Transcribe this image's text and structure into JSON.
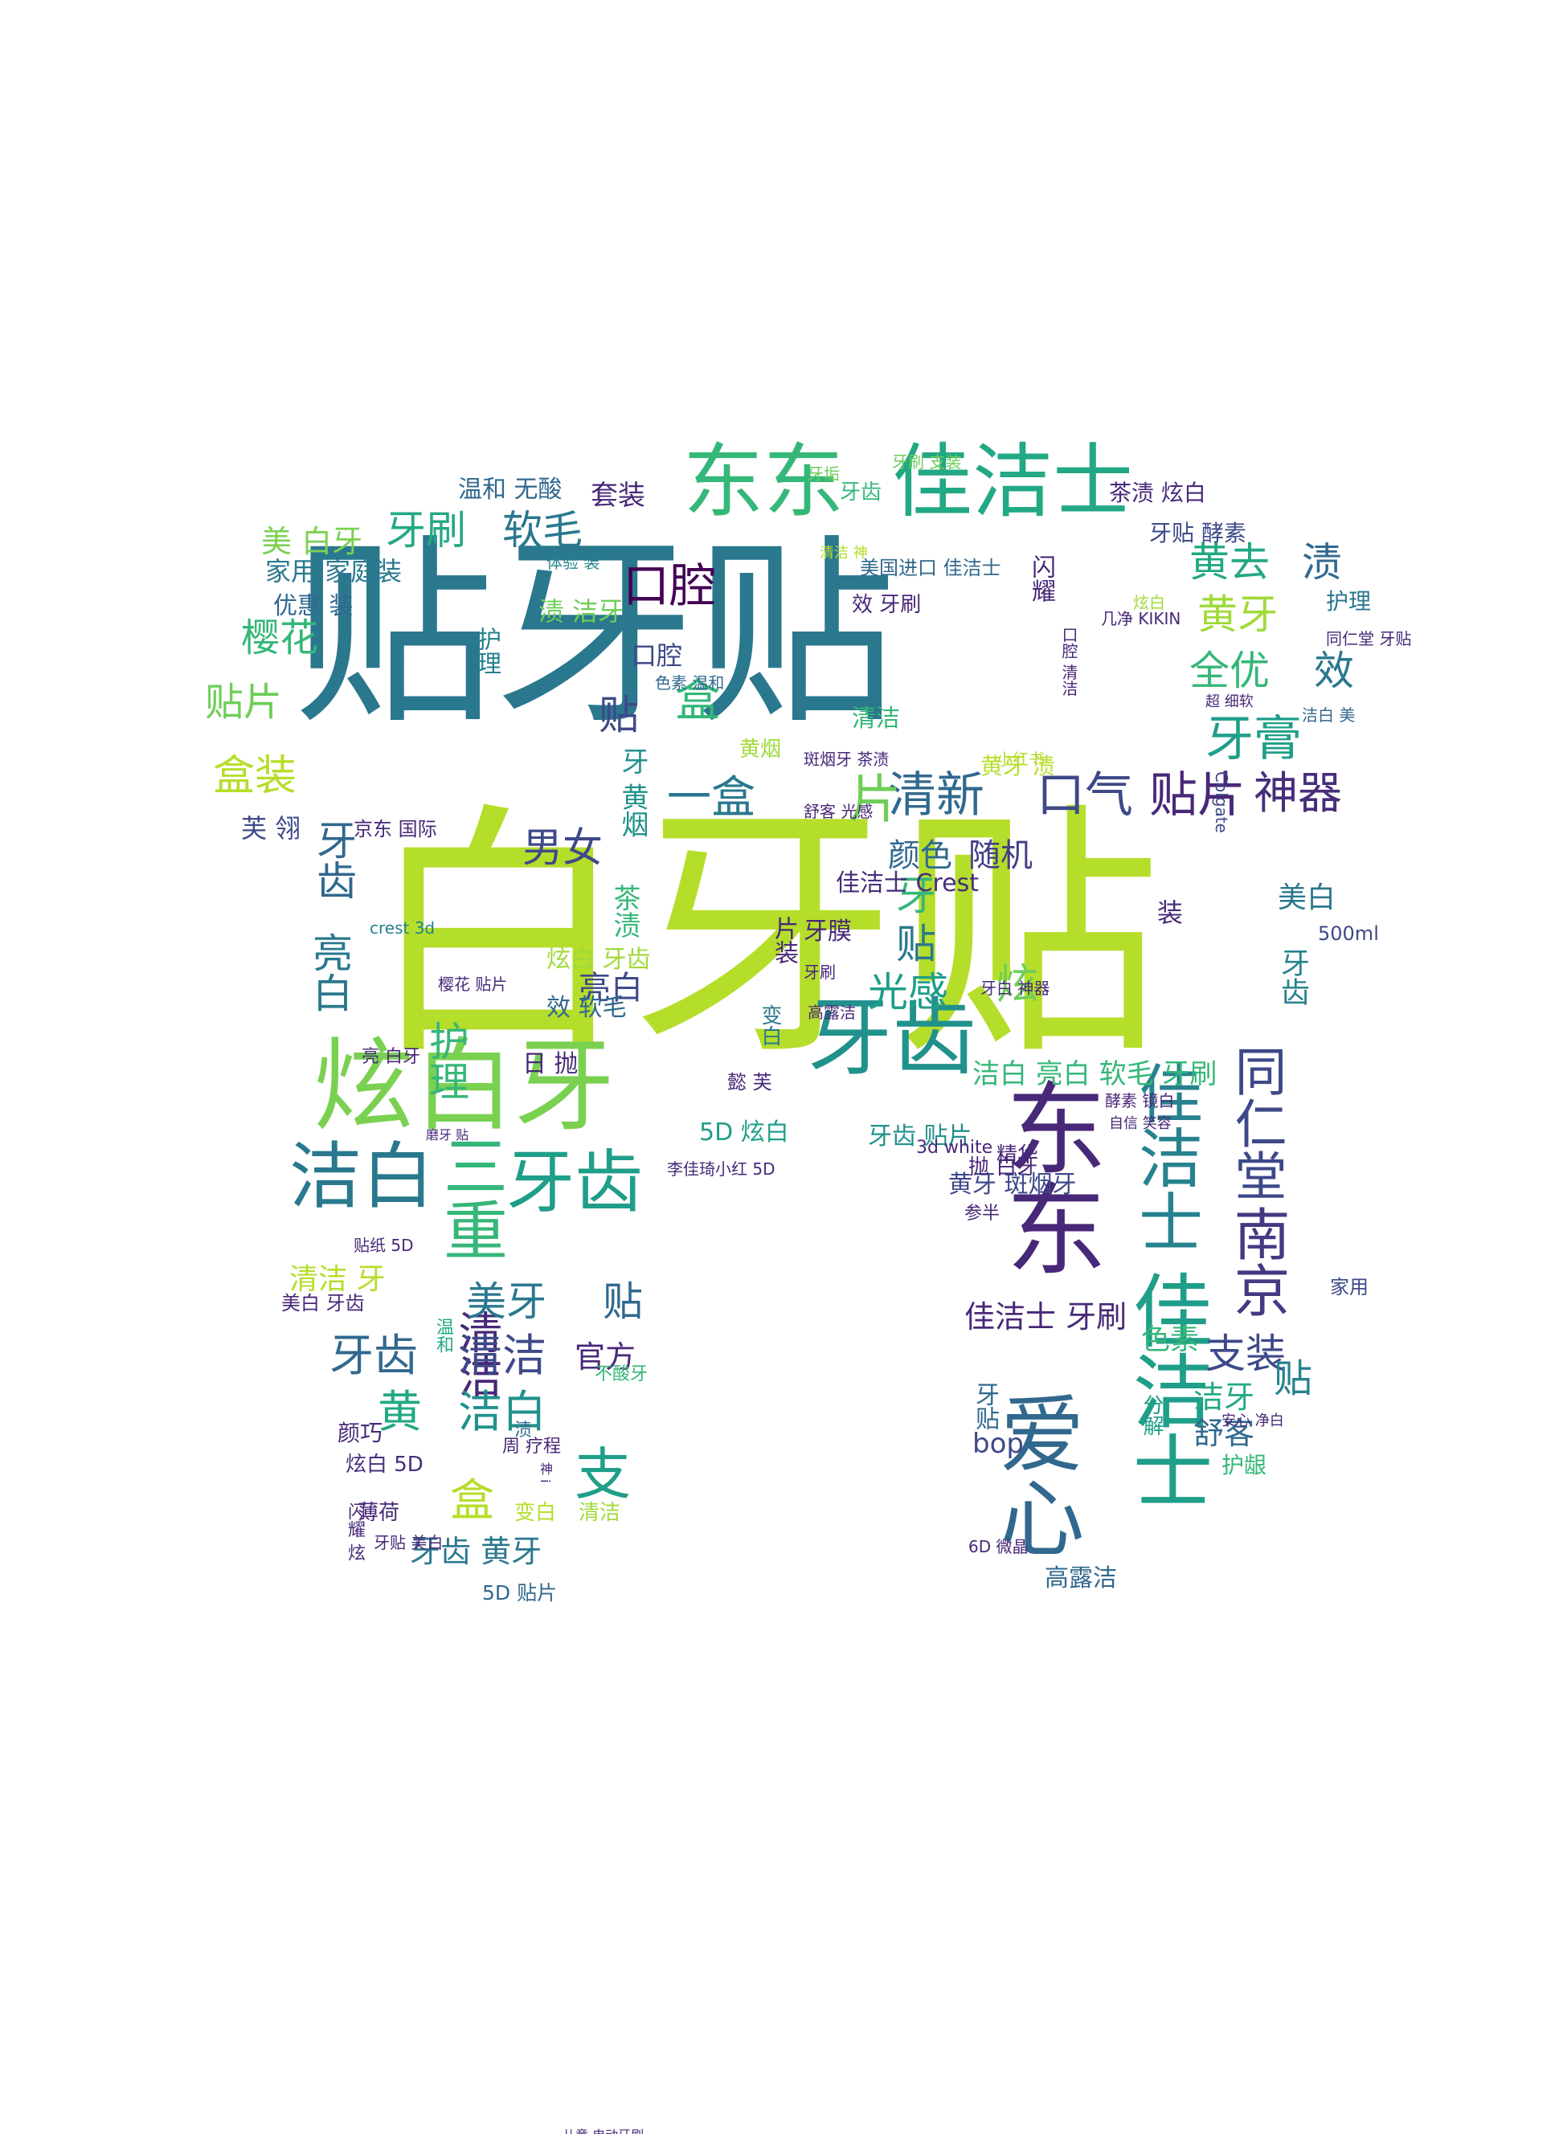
{
  "word_cloud": {
    "shape": "tooth",
    "words": [
      {
        "text": "白牙贴",
        "color": "#b5de2b"
      },
      {
        "text": "贴牙贴",
        "color": "#2a788e"
      },
      {
        "text": "东东",
        "color": "#35b779"
      },
      {
        "text": "佳洁士",
        "color": "#22a884"
      },
      {
        "text": "炫白牙",
        "color": "#7ad151"
      },
      {
        "text": "牙齿",
        "color": "#21918c"
      },
      {
        "text": "洁白",
        "color": "#2a788e"
      },
      {
        "text": "三重",
        "color": "#35b779"
      },
      {
        "text": "牙齿",
        "color": "#1f9e89"
      },
      {
        "text": "东东",
        "color": "#482878"
      },
      {
        "text": "爱心",
        "color": "#31688e"
      },
      {
        "text": "佳洁士",
        "color": "#1f9e89"
      },
      {
        "text": "佳洁士",
        "color": "#26828e"
      },
      {
        "text": "同仁堂",
        "color": "#3e4989"
      },
      {
        "text": "南京",
        "color": "#443983"
      },
      {
        "text": "清新",
        "color": "#31688e"
      },
      {
        "text": "口气",
        "color": "#3e4989"
      },
      {
        "text": "贴片",
        "color": "#482878"
      },
      {
        "text": "神器",
        "color": "#472d7b"
      },
      {
        "text": "口腔",
        "color": "#440154"
      },
      {
        "text": "牙刷",
        "color": "#22a884"
      },
      {
        "text": "软毛",
        "color": "#2a788e"
      },
      {
        "text": "美 白牙",
        "color": "#7ad151"
      },
      {
        "text": "樱花",
        "color": "#35b779"
      },
      {
        "text": "贴片",
        "color": "#6ece58"
      },
      {
        "text": "盒装",
        "color": "#b5de2b"
      },
      {
        "text": "黄去",
        "color": "#22a884"
      },
      {
        "text": "渍",
        "color": "#31688e"
      },
      {
        "text": "黄牙",
        "color": "#a0da39"
      },
      {
        "text": "全优",
        "color": "#35b779"
      },
      {
        "text": "效",
        "color": "#2a788e"
      },
      {
        "text": "牙膏",
        "color": "#1f9e89"
      },
      {
        "text": "盒",
        "color": "#35b779"
      },
      {
        "text": "一盒",
        "color": "#2a788e"
      },
      {
        "text": "片",
        "color": "#6ece58"
      },
      {
        "text": "贴",
        "color": "#3e4989"
      },
      {
        "text": "男女",
        "color": "#3e4989"
      },
      {
        "text": "颜色",
        "color": "#31688e"
      },
      {
        "text": "随机",
        "color": "#433e85"
      },
      {
        "text": "牙",
        "color": "#35b779"
      },
      {
        "text": "贴",
        "color": "#2a788e"
      },
      {
        "text": "光感",
        "color": "#1f9e89"
      },
      {
        "text": "炫",
        "color": "#6ece58"
      },
      {
        "text": "亮白",
        "color": "#2a788e"
      },
      {
        "text": "护理",
        "color": "#35b779"
      },
      {
        "text": "牙齿",
        "color": "#31688e"
      },
      {
        "text": "亮白",
        "color": "#3e4989"
      },
      {
        "text": "清洁",
        "color": "#482878"
      },
      {
        "text": "黄",
        "color": "#22a884"
      },
      {
        "text": "洁白",
        "color": "#21918c"
      },
      {
        "text": "支",
        "color": "#1f9e89"
      },
      {
        "text": "盒",
        "color": "#b5de2b"
      },
      {
        "text": "美牙",
        "color": "#2a788e"
      },
      {
        "text": "贴",
        "color": "#31688e"
      },
      {
        "text": "牙齿",
        "color": "#31688e"
      },
      {
        "text": "清洁",
        "color": "#3e4989"
      },
      {
        "text": "官方",
        "color": "#482878"
      },
      {
        "text": "清洁 牙",
        "color": "#b5de2b"
      },
      {
        "text": "美白 牙齿",
        "color": "#482878"
      },
      {
        "text": "牙齿 黄牙",
        "color": "#2a788e"
      },
      {
        "text": "5D 贴片",
        "color": "#31688e"
      },
      {
        "text": "薄荷",
        "color": "#482878"
      },
      {
        "text": "变白",
        "color": "#b5de2b"
      },
      {
        "text": "清洁",
        "color": "#a0da39"
      },
      {
        "text": "炫白 5D",
        "color": "#472d7b"
      },
      {
        "text": "支装",
        "color": "#3e4989"
      },
      {
        "text": "贴",
        "color": "#26828e"
      },
      {
        "text": "洁牙",
        "color": "#22a884"
      },
      {
        "text": "舒客",
        "color": "#31688e"
      },
      {
        "text": "护龈",
        "color": "#35b779"
      },
      {
        "text": "佳洁士 牙刷",
        "color": "#482878"
      },
      {
        "text": "黄牙 斑烟牙",
        "color": "#3e4989"
      },
      {
        "text": "精华",
        "color": "#482878"
      },
      {
        "text": "参半",
        "color": "#482878"
      },
      {
        "text": "牙贴",
        "color": "#31688e"
      },
      {
        "text": "色素",
        "color": "#35b779"
      },
      {
        "text": "分解",
        "color": "#1f9e89"
      },
      {
        "text": "bop",
        "color": "#3e4989"
      },
      {
        "text": "高露洁",
        "color": "#31688e"
      },
      {
        "text": "茶渍 炫白",
        "color": "#482878"
      },
      {
        "text": "牙贴 酵素",
        "color": "#3e4989"
      },
      {
        "text": "护理",
        "color": "#2a788e"
      },
      {
        "text": "同仁堂 牙贴",
        "color": "#482878"
      },
      {
        "text": "洁白 美",
        "color": "#31688e"
      },
      {
        "text": "500ml",
        "color": "#3e4989"
      },
      {
        "text": "家用",
        "color": "#3e4989"
      },
      {
        "text": "Colgate",
        "color": "#3e4989"
      },
      {
        "text": "美白",
        "color": "#2a788e"
      },
      {
        "text": "牙齿",
        "color": "#26828e"
      },
      {
        "text": "装",
        "color": "#482878"
      },
      {
        "text": "套装",
        "color": "#482878"
      },
      {
        "text": "温和 无酸",
        "color": "#31688e"
      },
      {
        "text": "家用 家庭装",
        "color": "#2a788e"
      },
      {
        "text": "优惠 装",
        "color": "#31688e"
      },
      {
        "text": "芙 翎",
        "color": "#3e4989"
      },
      {
        "text": "渍 洁牙",
        "color": "#6ece58"
      },
      {
        "text": "护理",
        "color": "#26828e"
      },
      {
        "text": "口腔",
        "color": "#3e4989"
      },
      {
        "text": "牙 黄烟",
        "color": "#21918c"
      },
      {
        "text": "茶渍",
        "color": "#35b779"
      },
      {
        "text": "黄烟",
        "color": "#a0da39"
      },
      {
        "text": "清洁",
        "color": "#35b779"
      },
      {
        "text": "黄牙 渍",
        "color": "#b5de2b"
      },
      {
        "text": "体验 装",
        "color": "#26828e"
      },
      {
        "text": "佳洁士 Crest",
        "color": "#472d7b"
      },
      {
        "text": "牙膜",
        "color": "#482878"
      },
      {
        "text": "洁白 亮白 软毛 牙刷",
        "color": "#35b779"
      },
      {
        "text": "5D 炫白",
        "color": "#1f9e89"
      },
      {
        "text": "牙齿 贴片",
        "color": "#21918c"
      },
      {
        "text": "懿 芙",
        "color": "#482878"
      },
      {
        "text": "片装",
        "color": "#482878"
      },
      {
        "text": "变白",
        "color": "#2a788e"
      },
      {
        "text": "牙齿",
        "color": "#35b779"
      },
      {
        "text": "牙垢",
        "color": "#6ece58"
      },
      {
        "text": "牙刷 支装",
        "color": "#6ece58"
      },
      {
        "text": "美国进口 佳洁士",
        "color": "#31688e"
      },
      {
        "text": "效 牙刷",
        "color": "#482878"
      },
      {
        "text": "口腔 清洁",
        "color": "#482878"
      },
      {
        "text": "闪耀",
        "color": "#482878"
      },
      {
        "text": "炫白",
        "color": "#a0da39"
      },
      {
        "text": "京东 国际",
        "color": "#482878"
      },
      {
        "text": "crest 3d",
        "color": "#26828e"
      },
      {
        "text": "樱花 贴片",
        "color": "#482878"
      },
      {
        "text": "亮 白牙",
        "color": "#482878"
      },
      {
        "text": "磨牙 贴",
        "color": "#482878"
      },
      {
        "text": "李佳琦小红 5D",
        "color": "#482878"
      },
      {
        "text": "贴纸 5D",
        "color": "#482878"
      },
      {
        "text": "3d white",
        "color": "#482878"
      },
      {
        "text": "抛 白牙",
        "color": "#482878"
      },
      {
        "text": "高露洁",
        "color": "#482878"
      },
      {
        "text": "牙刷",
        "color": "#482878"
      },
      {
        "text": "日 抛",
        "color": "#482878"
      },
      {
        "text": "炫白 牙齿",
        "color": "#a0da39"
      },
      {
        "text": "效 软毛",
        "color": "#31688e"
      },
      {
        "text": "渍",
        "color": "#31688e"
      },
      {
        "text": "颜巧",
        "color": "#482878"
      },
      {
        "text": "闪耀 炫",
        "color": "#482878"
      },
      {
        "text": "温和",
        "color": "#22a884"
      },
      {
        "text": "不酸牙",
        "color": "#35b779"
      },
      {
        "text": "周 疗程",
        "color": "#482878"
      },
      {
        "text": "牙贴 美白",
        "color": "#482878"
      },
      {
        "text": "神 i",
        "color": "#482878"
      },
      {
        "text": "小红书",
        "color": "#b5de2b"
      },
      {
        "text": "色素 温和",
        "color": "#31688e"
      },
      {
        "text": "斑烟牙 茶渍",
        "color": "#482878"
      },
      {
        "text": "舒客 光感",
        "color": "#482878"
      },
      {
        "text": "牙白 神器",
        "color": "#482878"
      },
      {
        "text": "酵素 镜白",
        "color": "#482878"
      },
      {
        "text": "自信 笑容",
        "color": "#482878"
      },
      {
        "text": "安心 净白",
        "color": "#482878"
      },
      {
        "text": "6D 微晶",
        "color": "#482878"
      },
      {
        "text": "清洁 神",
        "color": "#b5de2b"
      },
      {
        "text": "几净 KIKIN",
        "color": "#482878"
      },
      {
        "text": "超 细软",
        "color": "#482878"
      },
      {
        "text": "儿童 电动牙刷",
        "color": "#482878"
      }
    ]
  }
}
